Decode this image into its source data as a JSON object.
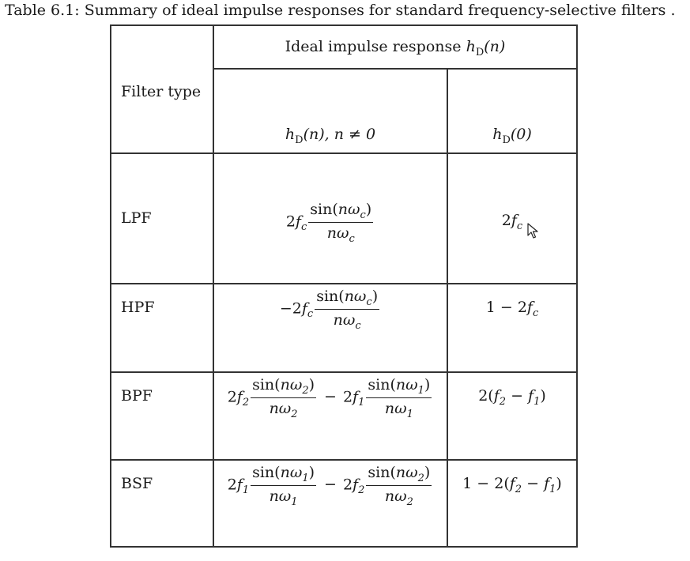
{
  "caption": "Table 6.1: Summary of ideal impulse responses for standard frequency-selective filters .",
  "header": {
    "filter_type": "Filter type",
    "group": "Ideal impulse response hD(n)",
    "col_nonzero": "hD(n), n ≠ 0",
    "col_zero": "hD(0)"
  },
  "rows": [
    {
      "filter": "LPF",
      "h_n": "2fc sin(nωc)/(nωc)",
      "h_0": "2fc"
    },
    {
      "filter": "HPF",
      "h_n": "−2fc sin(nωc)/(nωc)",
      "h_0": "1 − 2fc"
    },
    {
      "filter": "BPF",
      "h_n": "2f2 sin(nω2)/(nω2) − 2f1 sin(nω1)/(nω1)",
      "h_0": "2(f2 − f1)"
    },
    {
      "filter": "BSF",
      "h_n": "2f1 sin(nω1)/(nω1) − 2f2 sin(nω2)/(nω2)",
      "h_0": "1 − 2(f2 − f1)"
    }
  ]
}
